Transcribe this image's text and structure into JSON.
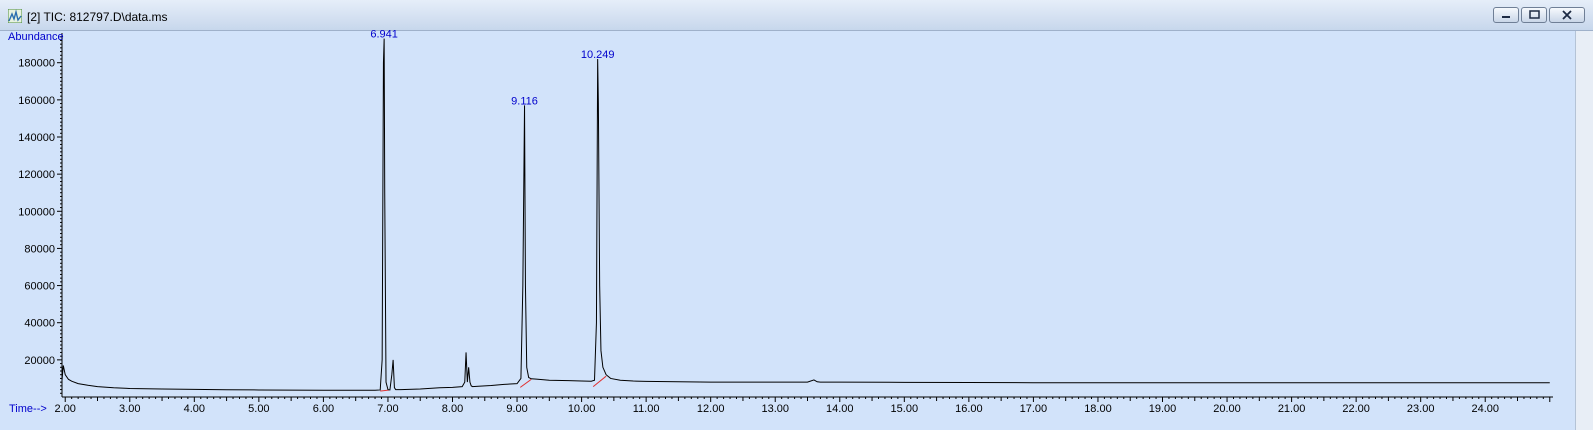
{
  "window": {
    "title": "[2] TIC: 812797.D\\data.ms",
    "buttons": [
      "minimize",
      "maximize",
      "close"
    ]
  },
  "chart_data": {
    "type": "line",
    "title": "",
    "xlabel": "Time-->",
    "ylabel": "Abundance",
    "xlim": [
      1.95,
      25.05
    ],
    "ylim": [
      0,
      196000
    ],
    "grid": false,
    "line_color": "#000000",
    "peak_label_color": "#0000cc",
    "x_ticks": [
      "2.00",
      "3.00",
      "4.00",
      "5.00",
      "6.00",
      "7.00",
      "8.00",
      "9.00",
      "10.00",
      "11.00",
      "12.00",
      "13.00",
      "14.00",
      "15.00",
      "16.00",
      "17.00",
      "18.00",
      "19.00",
      "20.00",
      "21.00",
      "22.00",
      "23.00",
      "24.00"
    ],
    "y_ticks": [
      "20000",
      "40000",
      "60000",
      "80000",
      "100000",
      "120000",
      "140000",
      "160000",
      "180000"
    ],
    "peak_labels": [
      {
        "label": "6.941",
        "x": 6.941,
        "y": 193000
      },
      {
        "label": "9.116",
        "x": 9.116,
        "y": 157000
      },
      {
        "label": "10.249",
        "x": 10.249,
        "y": 182000
      }
    ],
    "baselines": [
      {
        "x": [
          6.88,
          7.02
        ],
        "y": [
          3200,
          3800
        ]
      },
      {
        "x": [
          9.05,
          9.22
        ],
        "y": [
          5200,
          9500
        ]
      },
      {
        "x": [
          10.18,
          10.38
        ],
        "y": [
          5600,
          11200
        ]
      }
    ],
    "series": [
      {
        "x": [
          1.95,
          1.97,
          2.0,
          2.05,
          2.1,
          2.2,
          2.35,
          2.5,
          2.75,
          3.0,
          3.5,
          4.0,
          4.5,
          5.0,
          5.5,
          6.0,
          6.5,
          6.8,
          6.88,
          6.91,
          6.93,
          6.941,
          6.95,
          6.97,
          7.0,
          7.03,
          7.06,
          7.08,
          7.1,
          7.12,
          7.2,
          7.5,
          7.8,
          8.0,
          8.15,
          8.19,
          8.21,
          8.23,
          8.25,
          8.27,
          8.29,
          8.31,
          8.4,
          8.6,
          8.8,
          9.0,
          9.06,
          9.09,
          9.116,
          9.13,
          9.15,
          9.18,
          9.22,
          9.3,
          9.5,
          9.8,
          10.0,
          10.15,
          10.2,
          10.23,
          10.249,
          10.26,
          10.28,
          10.3,
          10.33,
          10.38,
          10.45,
          10.6,
          10.8,
          11.0,
          11.5,
          12.0,
          12.5,
          13.0,
          13.5,
          13.6,
          13.65,
          13.7,
          14.0,
          15.0,
          16.0,
          17.0,
          18.0,
          19.0,
          20.0,
          21.0,
          22.0,
          23.0,
          24.0,
          25.0
        ],
        "y": [
          9000,
          17000,
          12000,
          9500,
          8500,
          7200,
          6300,
          5600,
          5000,
          4600,
          4300,
          4100,
          3900,
          3800,
          3700,
          3650,
          3600,
          3600,
          3800,
          20000,
          180000,
          193000,
          110000,
          8000,
          4000,
          3800,
          12000,
          20000,
          5000,
          4000,
          4000,
          4300,
          5000,
          5200,
          5600,
          8000,
          24000,
          8000,
          16000,
          8000,
          6000,
          5600,
          5800,
          6200,
          6800,
          7200,
          10000,
          60000,
          157000,
          60000,
          16000,
          10500,
          9800,
          9600,
          9000,
          8800,
          8600,
          8500,
          9000,
          40000,
          182000,
          158000,
          60000,
          25000,
          16000,
          12000,
          10000,
          9000,
          8600,
          8400,
          8200,
          8000,
          8000,
          8000,
          8000,
          9200,
          8200,
          8000,
          8000,
          7900,
          7800,
          7700,
          7700,
          7700,
          7700,
          7700,
          7700,
          7700,
          7700,
          7700
        ]
      }
    ]
  }
}
